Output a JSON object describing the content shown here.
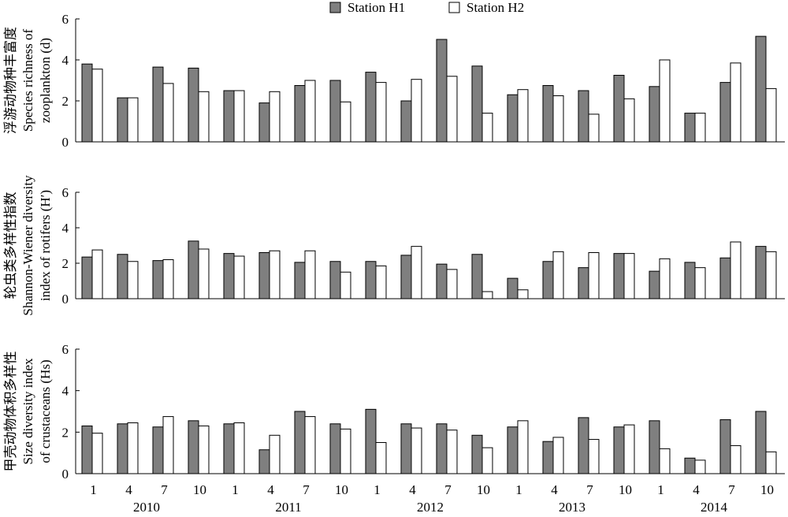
{
  "chart_data": {
    "type": "bar",
    "legend": {
      "placement": "top-center",
      "entries": [
        {
          "name": "Station H1",
          "color": "#7f7f7f"
        },
        {
          "name": "Station H2",
          "color": "#ffffff"
        }
      ]
    },
    "month_labels": [
      "1",
      "4",
      "7",
      "10",
      "1",
      "4",
      "7",
      "10",
      "1",
      "4",
      "7",
      "10",
      "1",
      "4",
      "7",
      "10",
      "1",
      "4",
      "7",
      "10"
    ],
    "year_labels": [
      "2010",
      "2011",
      "2012",
      "2013",
      "2014"
    ],
    "panels": [
      {
        "ylabel_lines": [
          "浮游动物种丰富度",
          "Species richness of",
          "zooplankton (d)"
        ],
        "ylim": [
          0,
          6
        ],
        "yticks": [
          "0",
          "2",
          "4",
          "6"
        ],
        "series": [
          {
            "name": "Station H1",
            "values": [
              3.8,
              2.15,
              3.65,
              3.6,
              2.5,
              1.9,
              2.75,
              3.0,
              3.4,
              2.0,
              5.0,
              3.7,
              2.3,
              2.75,
              2.5,
              3.25,
              2.7,
              1.4,
              2.9,
              5.15
            ]
          },
          {
            "name": "Station H2",
            "values": [
              3.55,
              2.15,
              2.85,
              2.45,
              2.5,
              2.45,
              3.0,
              1.95,
              2.9,
              3.05,
              3.2,
              1.4,
              2.55,
              2.25,
              1.35,
              2.1,
              4.0,
              1.4,
              3.85,
              2.6
            ]
          }
        ]
      },
      {
        "ylabel_lines": [
          "轮虫类多样性指数",
          "Shannon-Wiener diversity",
          "index of rotifers (H′)"
        ],
        "ylim": [
          0,
          6
        ],
        "yticks": [
          "0",
          "2",
          "4",
          "6"
        ],
        "series": [
          {
            "name": "Station H1",
            "values": [
              2.35,
              2.5,
              2.15,
              3.25,
              2.55,
              2.6,
              2.05,
              2.1,
              2.1,
              2.45,
              1.95,
              2.5,
              1.15,
              2.1,
              1.75,
              2.55,
              1.55,
              2.05,
              2.3,
              2.95
            ]
          },
          {
            "name": "Station H2",
            "values": [
              2.75,
              2.1,
              2.2,
              2.8,
              2.4,
              2.7,
              2.7,
              1.5,
              1.85,
              2.95,
              1.65,
              0.4,
              0.5,
              2.65,
              2.6,
              2.55,
              2.25,
              1.75,
              3.2,
              2.65
            ]
          }
        ]
      },
      {
        "ylabel_lines": [
          "甲壳动物体积多样性",
          "Size diversity index",
          "of crustaceans (Hs)"
        ],
        "ylim": [
          0,
          6
        ],
        "yticks": [
          "0",
          "2",
          "4",
          "6"
        ],
        "series": [
          {
            "name": "Station H1",
            "values": [
              2.3,
              2.4,
              2.25,
              2.55,
              2.4,
              1.15,
              3.0,
              2.4,
              3.1,
              2.4,
              2.4,
              1.85,
              2.25,
              1.55,
              2.7,
              2.25,
              2.55,
              0.75,
              2.6,
              3.0
            ]
          },
          {
            "name": "Station H2",
            "values": [
              1.95,
              2.45,
              2.75,
              2.3,
              2.45,
              1.85,
              2.75,
              2.15,
              1.5,
              2.2,
              2.1,
              1.25,
              2.55,
              1.75,
              1.65,
              2.35,
              1.2,
              0.65,
              1.35,
              1.05
            ]
          }
        ]
      }
    ]
  }
}
